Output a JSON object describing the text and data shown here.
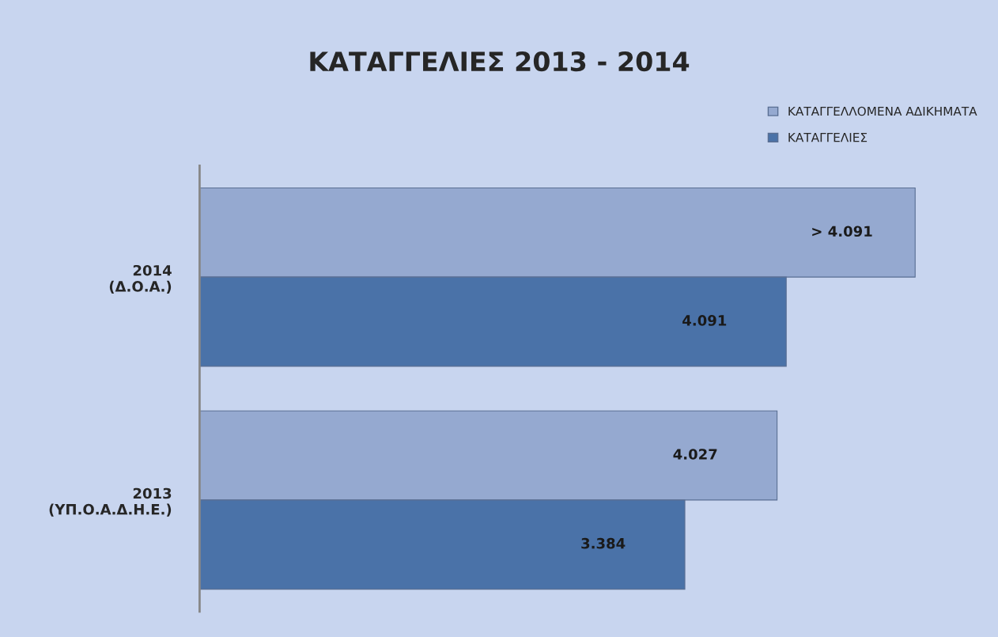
{
  "chart_data": {
    "type": "bar",
    "orientation": "horizontal",
    "title": "ΚΑΤΑΓΓΕΛΙΕΣ 2013 - 2014",
    "categories": [
      "2014\n(Δ.Ο.Α.)",
      "2013\n(ΥΠ.Ο.Α.Δ.Η.Ε.)"
    ],
    "series": [
      {
        "name": "ΚΑΤΑΓΓΕΛΛΟΜΕΝΑ ΑΔΙΚΗΜΑΤΑ",
        "color": "#95a9d0",
        "values": [
          4990,
          4027
        ],
        "value_labels": [
          "> 4.091",
          "4.027"
        ]
      },
      {
        "name": "ΚΑΤΑΓΓΕΛΙΕΣ",
        "color": "#4a72a8",
        "values": [
          4091,
          3384
        ],
        "value_labels": [
          "4.091",
          "3.384"
        ]
      }
    ],
    "legend": "top right",
    "grid": false
  }
}
